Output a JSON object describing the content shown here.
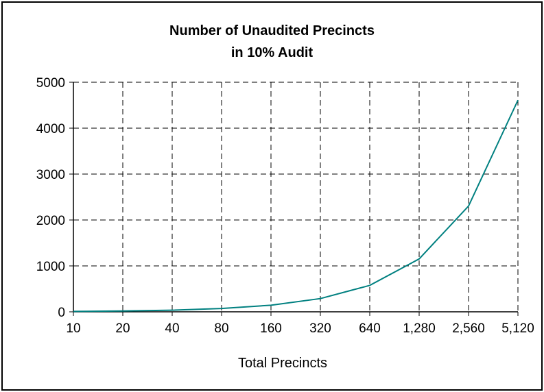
{
  "chart_data": {
    "type": "line",
    "title": "Number of Unaudited Precincts",
    "subtitle": "in  10% Audit",
    "xlabel": "Total Precincts",
    "ylabel": "",
    "categories": [
      "10",
      "20",
      "40",
      "80",
      "160",
      "320",
      "640",
      "1,280",
      "2,560",
      "5,120"
    ],
    "series": [
      {
        "values": [
          9,
          18,
          36,
          72,
          144,
          288,
          576,
          1152,
          2304,
          4608
        ],
        "color": "#008080"
      }
    ],
    "ylim": [
      0,
      5000
    ],
    "yticks": [
      0,
      1000,
      2000,
      3000,
      4000,
      5000
    ],
    "grid": true,
    "legend": "none"
  }
}
